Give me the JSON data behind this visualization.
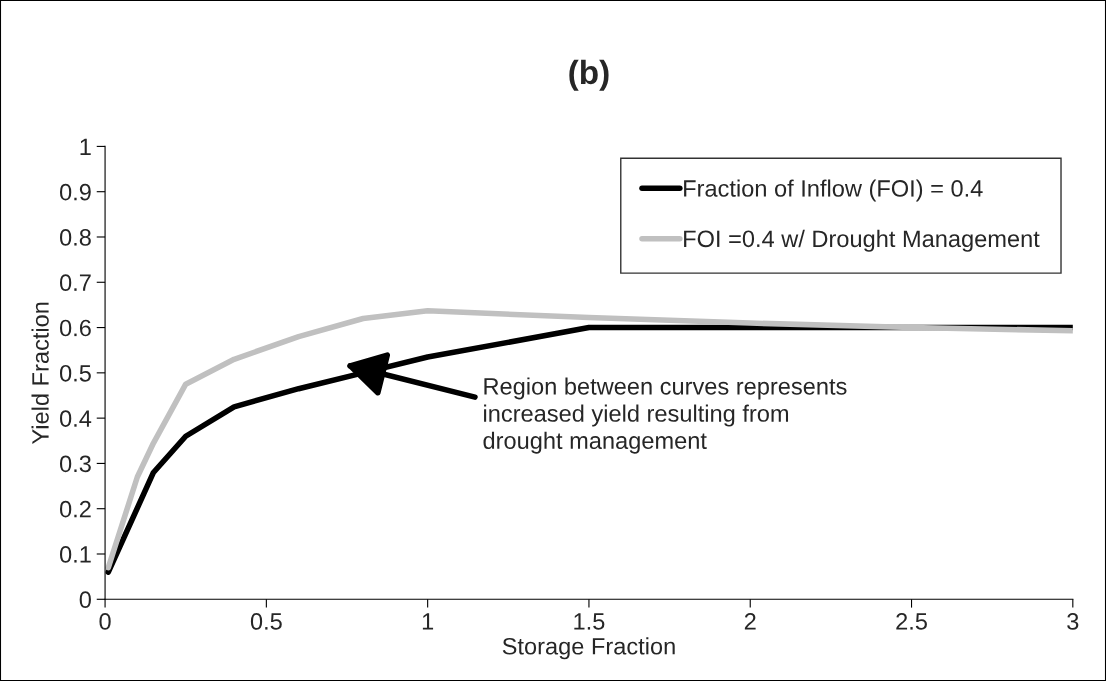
{
  "chart_data": {
    "type": "line",
    "title": "(b)",
    "xlabel": "Storage Fraction",
    "ylabel": "Yield Fraction",
    "series": [
      {
        "name": "Fraction of Inflow (FOI) = 0.4",
        "color": "#000000",
        "x": [
          0.01,
          0.15,
          0.25,
          0.4,
          0.6,
          0.8,
          1.0,
          1.5,
          2.0,
          3.0
        ],
        "values": [
          0.06,
          0.28,
          0.36,
          0.425,
          0.465,
          0.5,
          0.535,
          0.6,
          0.6,
          0.6
        ]
      },
      {
        "name": "FOI =0.4 w/ Drought Management",
        "color": "#c0c0c0",
        "x": [
          0.01,
          0.1,
          0.15,
          0.25,
          0.4,
          0.6,
          0.8,
          1.0,
          1.5,
          2.0,
          2.5,
          3.0
        ],
        "values": [
          0.07,
          0.27,
          0.345,
          0.475,
          0.53,
          0.58,
          0.62,
          0.637,
          0.622,
          0.61,
          0.6,
          0.593
        ]
      }
    ],
    "xlim": [
      0,
      3
    ],
    "xticks": [
      0,
      0.5,
      1,
      1.5,
      2,
      2.5,
      3
    ],
    "ylim": [
      0,
      1
    ],
    "yticks": [
      0,
      0.1,
      0.2,
      0.3,
      0.4,
      0.5,
      0.6,
      0.7,
      0.8,
      0.9,
      1
    ],
    "annotations": [
      "Region between curves represents\nincreased yield resulting from\ndrought management"
    ],
    "grid": false,
    "legend": "top right",
    "marker": "none",
    "line_style": "solid"
  }
}
